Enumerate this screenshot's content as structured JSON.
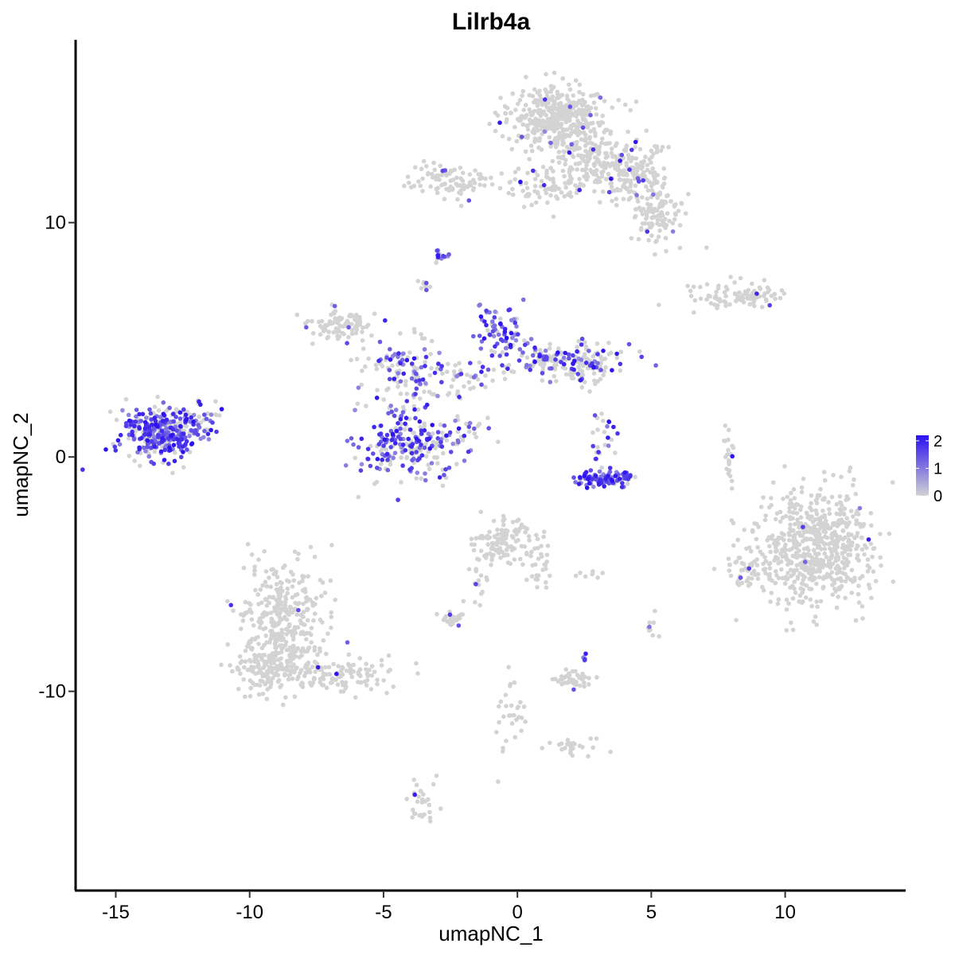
{
  "chart_data": {
    "type": "scatter",
    "title": "Lilrb4a",
    "xlabel": "umapNC_1",
    "ylabel": "umapNC_2",
    "xlim": [
      -16.5,
      14.5
    ],
    "ylim": [
      -18.5,
      17.8
    ],
    "x_ticks": [
      -15,
      -10,
      -5,
      0,
      5,
      10
    ],
    "x_tick_labels": [
      "-15",
      "-10",
      "-5",
      "0",
      "5",
      "10"
    ],
    "y_ticks": [
      -10,
      0,
      10
    ],
    "y_tick_labels": [
      "-10",
      "0",
      "10"
    ],
    "grid": false,
    "legend": {
      "placement": "right",
      "type": "colorbar",
      "min": 0,
      "max": 2.2,
      "ticks": [
        0,
        1,
        2
      ],
      "tick_labels": [
        "0",
        "1",
        "2"
      ],
      "low_color": "#d3d3d3",
      "high_color": "#2a10f0"
    },
    "clusters": [
      {
        "id": "top-main",
        "points": [
          {
            "x": 1.5,
            "y": 14.5,
            "sd": [
              0.9,
              0.7
            ],
            "n": 420,
            "expr": 0.02
          },
          {
            "x": 3.4,
            "y": 12.6,
            "sd": [
              0.9,
              0.6
            ],
            "n": 220,
            "expr": 0.04
          },
          {
            "x": 5.2,
            "y": 10.3,
            "sd": [
              0.5,
              0.6
            ],
            "n": 110,
            "expr": 0.04
          },
          {
            "x": 1.0,
            "y": 11.6,
            "sd": [
              0.9,
              0.5
            ],
            "n": 90,
            "expr": 0.05
          },
          {
            "x": -2.5,
            "y": 11.8,
            "sd": [
              0.7,
              0.4
            ],
            "n": 90,
            "expr": 0.04
          },
          {
            "x": 4.6,
            "y": 11.8,
            "sd": [
              0.6,
              0.5
            ],
            "n": 60,
            "expr": 0.06
          }
        ]
      },
      {
        "id": "right-strip",
        "points": [
          {
            "x": 8.3,
            "y": 6.9,
            "sd": [
              1.0,
              0.25
            ],
            "n": 90,
            "expr": 0.06
          }
        ]
      },
      {
        "id": "left-blob",
        "points": [
          {
            "x": -13.3,
            "y": 1.0,
            "sd": [
              0.75,
              0.55
            ],
            "n": 330,
            "expr": 0.72
          },
          {
            "x": -11.9,
            "y": 1.6,
            "sd": [
              0.4,
              0.45
            ],
            "n": 35,
            "expr": 0.5
          }
        ]
      },
      {
        "id": "center-web",
        "points": [
          {
            "x": -6.6,
            "y": 5.6,
            "sd": [
              0.6,
              0.35
            ],
            "n": 90,
            "expr": 0.06
          },
          {
            "x": -4.0,
            "y": 0.6,
            "sd": [
              0.95,
              0.75
            ],
            "n": 240,
            "expr": 0.55
          },
          {
            "x": -4.4,
            "y": 3.8,
            "sd": [
              0.8,
              0.7
            ],
            "n": 90,
            "expr": 0.45
          },
          {
            "x": -0.6,
            "y": 5.4,
            "sd": [
              0.5,
              0.7
            ],
            "n": 70,
            "expr": 0.75
          },
          {
            "x": 1.5,
            "y": 4.1,
            "sd": [
              1.4,
              0.4
            ],
            "n": 130,
            "expr": 0.45
          },
          {
            "x": 2.3,
            "y": 4.0,
            "sd": [
              0.6,
              0.4
            ],
            "n": 80,
            "expr": 0.08
          },
          {
            "x": -2.8,
            "y": 3.3,
            "sd": [
              1.0,
              0.5
            ],
            "n": 70,
            "expr": 0.45
          },
          {
            "x": -2.1,
            "y": 1.1,
            "sd": [
              0.6,
              0.4
            ],
            "n": 25,
            "expr": 0.45
          },
          {
            "x": -3.5,
            "y": 7.3,
            "sd": [
              0.15,
              0.15
            ],
            "n": 10,
            "expr": 0.2
          }
        ]
      },
      {
        "id": "tiny-dense",
        "points": [
          {
            "x": -2.9,
            "y": 8.6,
            "sd": [
              0.15,
              0.1
            ],
            "n": 14,
            "expr": 0.95
          }
        ]
      },
      {
        "id": "arc-cluster",
        "points": [
          {
            "x": 3.3,
            "y": -0.9,
            "sd": [
              0.55,
              0.18
            ],
            "n": 100,
            "expr": 0.9
          },
          {
            "x": 3.2,
            "y": 0.7,
            "sd": [
              0.3,
              0.5
            ],
            "n": 25,
            "expr": 0.4
          }
        ]
      },
      {
        "id": "right-thin",
        "points": [
          {
            "x": 7.9,
            "y": 0.0,
            "sd": [
              0.12,
              0.55
            ],
            "n": 22,
            "expr": 0.05
          }
        ]
      },
      {
        "id": "right-large",
        "points": [
          {
            "x": 11.2,
            "y": -3.9,
            "sd": [
              1.1,
              1.25
            ],
            "n": 650,
            "expr": 0.01
          },
          {
            "x": 8.7,
            "y": -4.9,
            "sd": [
              0.6,
              0.4
            ],
            "n": 50,
            "expr": 0.01
          }
        ]
      },
      {
        "id": "bottom-left",
        "points": [
          {
            "x": -8.7,
            "y": -7.0,
            "sd": [
              0.75,
              1.2
            ],
            "n": 350,
            "expr": 0.01
          },
          {
            "x": -9.3,
            "y": -9.0,
            "sd": [
              0.6,
              0.45
            ],
            "n": 120,
            "expr": 0.01
          },
          {
            "x": -6.8,
            "y": -9.3,
            "sd": [
              1.2,
              0.4
            ],
            "n": 130,
            "expr": 0.01
          }
        ]
      },
      {
        "id": "center-lower",
        "points": [
          {
            "x": -0.5,
            "y": -3.6,
            "sd": [
              0.5,
              0.5
            ],
            "n": 120,
            "expr": 0.03
          },
          {
            "x": 0.9,
            "y": -4.6,
            "sd": [
              0.2,
              0.6
            ],
            "n": 30,
            "expr": 0.02
          },
          {
            "x": -2.5,
            "y": -6.9,
            "sd": [
              0.3,
              0.15
            ],
            "n": 25,
            "expr": 0.05
          },
          {
            "x": -1.5,
            "y": -5.4,
            "sd": [
              0.3,
              0.5
            ],
            "n": 15,
            "expr": 0.05
          },
          {
            "x": 2.1,
            "y": -9.5,
            "sd": [
              0.4,
              0.2
            ],
            "n": 40,
            "expr": 0.02
          },
          {
            "x": 2.5,
            "y": -8.5,
            "sd": [
              0.05,
              0.15
            ],
            "n": 5,
            "expr": 0.5
          },
          {
            "x": 2.2,
            "y": -12.3,
            "sd": [
              0.5,
              0.2
            ],
            "n": 25,
            "expr": 0.02
          },
          {
            "x": -0.3,
            "y": -11.0,
            "sd": [
              0.3,
              0.8
            ],
            "n": 30,
            "expr": 0.02
          },
          {
            "x": -3.6,
            "y": -14.8,
            "sd": [
              0.25,
              0.5
            ],
            "n": 30,
            "expr": 0.03
          },
          {
            "x": 5.0,
            "y": -7.3,
            "sd": [
              0.1,
              0.3
            ],
            "n": 10,
            "expr": 0.02
          },
          {
            "x": 2.7,
            "y": -5.0,
            "sd": [
              0.4,
              0.1
            ],
            "n": 8,
            "expr": 0.02
          }
        ]
      }
    ]
  }
}
